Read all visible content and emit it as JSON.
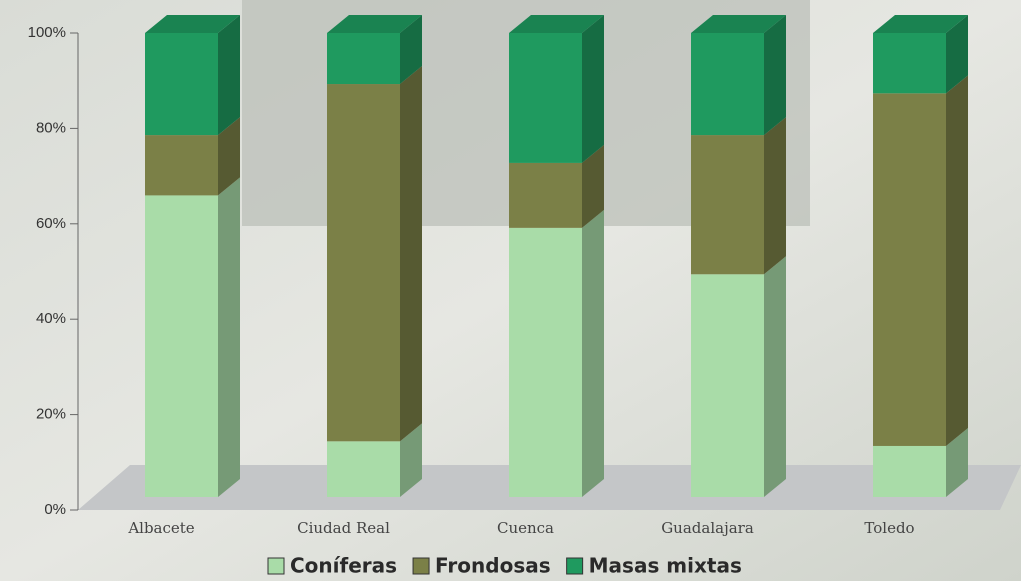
{
  "chart_data": {
    "type": "stacked_bar_3d",
    "categories": [
      "Albacete",
      "Ciudad Real",
      "Cuenca",
      "Guadalajara",
      "Toledo"
    ],
    "series": [
      {
        "name": "Coníferas",
        "color": "#a9dca8",
        "values": [
          65,
          12,
          58,
          48,
          11
        ]
      },
      {
        "name": "Frondosas",
        "color": "#7b8047",
        "values": [
          13,
          77,
          14,
          30,
          76
        ]
      },
      {
        "name": "Masas mixtas",
        "color": "#1f9a5f",
        "values": [
          22,
          11,
          28,
          22,
          13
        ]
      }
    ],
    "ylim": [
      0,
      100
    ],
    "yticks": [
      {
        "value": 0,
        "label": "0%"
      },
      {
        "value": 20,
        "label": "20%"
      },
      {
        "value": 40,
        "label": "40%"
      },
      {
        "value": 60,
        "label": "60%"
      },
      {
        "value": 80,
        "label": "80%"
      },
      {
        "value": 100,
        "label": "100%"
      }
    ]
  }
}
